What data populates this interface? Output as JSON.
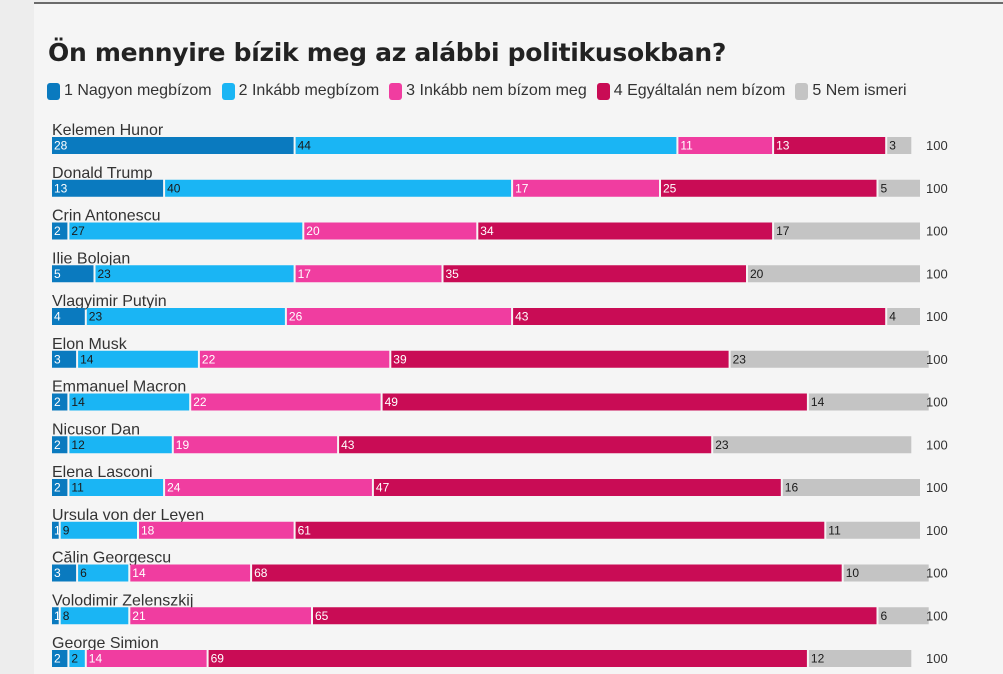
{
  "chart_data": {
    "type": "bar",
    "orientation": "horizontal",
    "stacked": true,
    "title": "Ön mennyire bízik meg az alábbi politikusokban?",
    "categories": [
      "Kelemen Hunor",
      "Donald Trump",
      "Crin Antonescu",
      "Ilie Bolojan",
      "Vlagyimir Putyin",
      "Elon Musk",
      "Emmanuel Macron",
      "Nicusor Dan",
      "Elena Lasconi",
      "Ursula von der Leyen",
      "Călin Georgescu",
      "Volodimir Zelenszkij",
      "George Simion"
    ],
    "series": [
      {
        "name": "1 Nagyon megbízom",
        "color": "#0a7abf",
        "label_color": "#ffffff",
        "values": [
          28,
          13,
          2,
          5,
          4,
          3,
          2,
          2,
          2,
          1,
          3,
          1,
          2
        ]
      },
      {
        "name": "2 Inkább megbízom",
        "color": "#1ab5f4",
        "label_color": "#1a1a1a",
        "values": [
          44,
          40,
          27,
          23,
          23,
          14,
          14,
          12,
          11,
          9,
          6,
          8,
          2
        ]
      },
      {
        "name": "3 Inkább nem bízom meg",
        "color": "#f03da0",
        "label_color": "#ffffff",
        "values": [
          11,
          17,
          20,
          17,
          26,
          22,
          22,
          19,
          24,
          18,
          14,
          21,
          14
        ]
      },
      {
        "name": "4 Egyáltalán nem bízom",
        "color": "#c90c55",
        "label_color": "#ffffff",
        "values": [
          13,
          25,
          34,
          35,
          43,
          39,
          49,
          43,
          47,
          61,
          68,
          65,
          69
        ]
      },
      {
        "name": "5 Nem ismeri",
        "color": "#c4c4c4",
        "label_color": "#1a1a1a",
        "values": [
          3,
          5,
          17,
          20,
          4,
          23,
          14,
          23,
          16,
          11,
          10,
          6,
          12
        ]
      }
    ],
    "totals": [
      100,
      100,
      100,
      100,
      100,
      100,
      100,
      100,
      100,
      100,
      100,
      100,
      100
    ],
    "xlim": [
      0,
      100
    ],
    "grid": false,
    "legend_position": "top-left"
  }
}
